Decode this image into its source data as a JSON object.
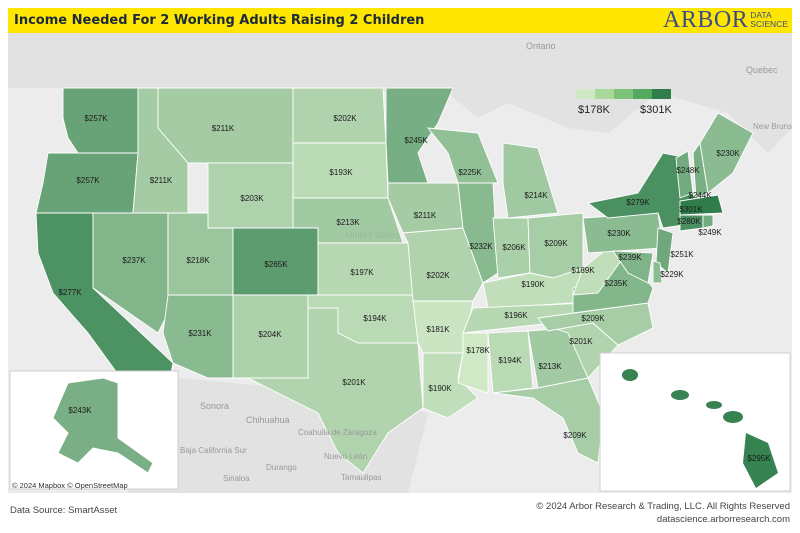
{
  "title": "Income Needed For 2 Working Adults Raising 2 Children",
  "logo": {
    "name": "ARBOR",
    "sub1": "DATA",
    "sub2": "SCIENCE"
  },
  "legend": {
    "min": "$178K",
    "max": "$301K",
    "colors": [
      "#cfe8c5",
      "#a8d89a",
      "#7fc27a",
      "#55a85f",
      "#2e7d4b"
    ]
  },
  "basemap": {
    "labels": [
      "Ontario",
      "Quebec",
      "New Brunswick",
      "United States",
      "Sonora",
      "Chihuahua",
      "Coahuila de Zaragoza",
      "Nuevo León",
      "Durango",
      "Sinaloa",
      "Tamaulipas",
      "Baja California Sur"
    ],
    "attribution": "© 2024 Mapbox © OpenStreetMap"
  },
  "states": [
    {
      "abbr": "WA",
      "label": "$257K",
      "value": 257
    },
    {
      "abbr": "OR",
      "label": "$257K",
      "value": 257
    },
    {
      "abbr": "CA",
      "label": "$277K",
      "value": 277
    },
    {
      "abbr": "ID",
      "label": "$211K",
      "value": 211
    },
    {
      "abbr": "NV",
      "label": "$237K",
      "value": 237
    },
    {
      "abbr": "MT",
      "label": "$211K",
      "value": 211
    },
    {
      "abbr": "WY",
      "label": "$203K",
      "value": 203
    },
    {
      "abbr": "UT",
      "label": "$218K",
      "value": 218
    },
    {
      "abbr": "AZ",
      "label": "$231K",
      "value": 231
    },
    {
      "abbr": "CO",
      "label": "$265K",
      "value": 265
    },
    {
      "abbr": "NM",
      "label": "$204K",
      "value": 204
    },
    {
      "abbr": "ND",
      "label": "$202K",
      "value": 202
    },
    {
      "abbr": "SD",
      "label": "$193K",
      "value": 193
    },
    {
      "abbr": "NE",
      "label": "$213K",
      "value": 213
    },
    {
      "abbr": "KS",
      "label": "$197K",
      "value": 197
    },
    {
      "abbr": "OK",
      "label": "$194K",
      "value": 194
    },
    {
      "abbr": "TX",
      "label": "$201K",
      "value": 201
    },
    {
      "abbr": "MN",
      "label": "$245K",
      "value": 245
    },
    {
      "abbr": "IA",
      "label": "$211K",
      "value": 211
    },
    {
      "abbr": "MO",
      "label": "$202K",
      "value": 202
    },
    {
      "abbr": "AR",
      "label": "$181K",
      "value": 181
    },
    {
      "abbr": "LA",
      "label": "$190K",
      "value": 190
    },
    {
      "abbr": "WI",
      "label": "$225K",
      "value": 225
    },
    {
      "abbr": "IL",
      "label": "$232K",
      "value": 232
    },
    {
      "abbr": "MI",
      "label": "$214K",
      "value": 214
    },
    {
      "abbr": "IN",
      "label": "$206K",
      "value": 206
    },
    {
      "abbr": "OH",
      "label": "$209K",
      "value": 209
    },
    {
      "abbr": "KY",
      "label": "$190K",
      "value": 190
    },
    {
      "abbr": "TN",
      "label": "$196K",
      "value": 196
    },
    {
      "abbr": "MS",
      "label": "$178K",
      "value": 178
    },
    {
      "abbr": "AL",
      "label": "$194K",
      "value": 194
    },
    {
      "abbr": "GA",
      "label": "$213K",
      "value": 213
    },
    {
      "abbr": "FL",
      "label": "$209K",
      "value": 209
    },
    {
      "abbr": "SC",
      "label": "$201K",
      "value": 201
    },
    {
      "abbr": "NC",
      "label": "$209K",
      "value": 209
    },
    {
      "abbr": "VA",
      "label": "$235K",
      "value": 235
    },
    {
      "abbr": "WV",
      "label": "$189K",
      "value": 189
    },
    {
      "abbr": "PA",
      "label": "$230K",
      "value": 230
    },
    {
      "abbr": "NY",
      "label": "$279K",
      "value": 279
    },
    {
      "abbr": "VT",
      "label": "$248K",
      "value": 248
    },
    {
      "abbr": "NH",
      "label": "$244K",
      "value": 244
    },
    {
      "abbr": "ME",
      "label": "$230K",
      "value": 230
    },
    {
      "abbr": "MA",
      "label": "$301K",
      "value": 301
    },
    {
      "abbr": "CT",
      "label": "$280K",
      "value": 280
    },
    {
      "abbr": "RI",
      "label": "$249K",
      "value": 249
    },
    {
      "abbr": "NJ",
      "label": "$251K",
      "value": 251
    },
    {
      "abbr": "DE",
      "label": "$229K",
      "value": 229
    },
    {
      "abbr": "MD",
      "label": "$239K",
      "value": 239
    },
    {
      "abbr": "AK",
      "label": "$243K",
      "value": 243
    },
    {
      "abbr": "HI",
      "label": "$295K",
      "value": 295
    }
  ],
  "footer": {
    "source": "Data Source: SmartAsset",
    "copyright": "© 2024 Arbor Research & Trading, LLC. All Rights Reserved",
    "website": "datascience.arborresearch.com"
  }
}
